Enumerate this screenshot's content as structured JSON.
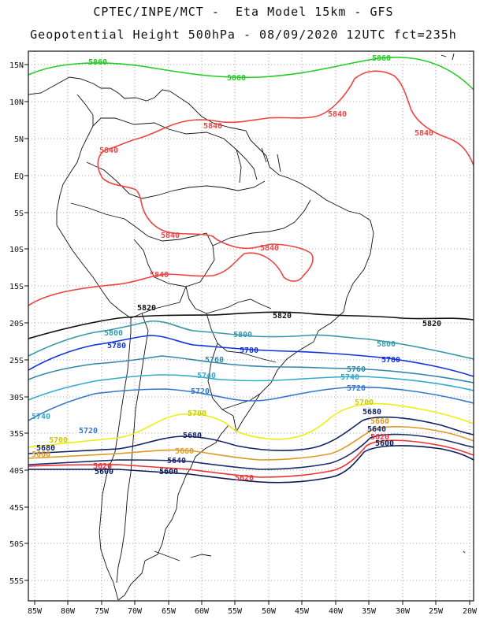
{
  "title": {
    "line1": "CPTEC/INPE/MCT -  Eta Model 15km - GFS",
    "line2": "Geopotential Height 500hPa - 08/09/2020 12UTC fct=235h"
  },
  "axes": {
    "lon_labels": [
      "85W",
      "80W",
      "75W",
      "70W",
      "65W",
      "60W",
      "55W",
      "50W",
      "45W",
      "40W",
      "35W",
      "30W",
      "25W",
      "20W"
    ],
    "lat_labels": [
      "15N",
      "10N",
      "5N",
      "EQ",
      "5S",
      "10S",
      "15S",
      "20S",
      "25S",
      "30S",
      "35S",
      "40S",
      "45S",
      "50S",
      "55S"
    ]
  },
  "contours": [
    {
      "value": "5860",
      "color": "#22cc22"
    },
    {
      "value": "5840",
      "color": "#ee4444"
    },
    {
      "value": "5820",
      "color": "#111111"
    },
    {
      "value": "5800",
      "color": "#3399aa"
    },
    {
      "value": "5780",
      "color": "#1133dd"
    },
    {
      "value": "5760",
      "color": "#3388aa"
    },
    {
      "value": "5740",
      "color": "#33aacc"
    },
    {
      "value": "5720",
      "color": "#3377cc"
    },
    {
      "value": "5700",
      "color": "#eeee11"
    },
    {
      "value": "5680",
      "color": "#112266"
    },
    {
      "value": "5660",
      "color": "#dd9922"
    },
    {
      "value": "5640",
      "color": "#1a2a6a"
    },
    {
      "value": "5620",
      "color": "#ee3333"
    },
    {
      "value": "5600",
      "color": "#0a1a55"
    }
  ],
  "labels": {
    "l5860a": "5860",
    "l5860b": "5860",
    "l5860c": "5860",
    "l5840a": "5840",
    "l5840b": "5840",
    "l5840c": "5840",
    "l5840d": "5840",
    "l5840e": "5840",
    "l5840f": "5840",
    "l5840g": "5840",
    "l5820a": "5820",
    "l5820b": "5820",
    "l5820c": "5820",
    "l5800a": "5800",
    "l5800b": "5800",
    "l5800c": "5800",
    "l5780a": "5780",
    "l5780b": "5780",
    "l5780c": "5780",
    "l5760a": "5760",
    "l5760b": "5760",
    "l5740a": "5740",
    "l5740b": "5740",
    "l5740c": "5740",
    "l5720a": "5720",
    "l5720b": "5720",
    "l5720c": "5720",
    "l5700a": "5700",
    "l5700b": "5700",
    "l5700c": "5700",
    "l5680a": "5680",
    "l5680b": "5680",
    "l5680c": "5680",
    "l5660a": "5660",
    "l5660b": "5660",
    "l5660c": "5660",
    "l5640a": "5640",
    "l5640b": "5640",
    "l5620a": "5620",
    "l5620b": "5620",
    "l5620c": "5620",
    "l5600a": "5600",
    "l5600b": "5600",
    "l5600c": "5600"
  }
}
